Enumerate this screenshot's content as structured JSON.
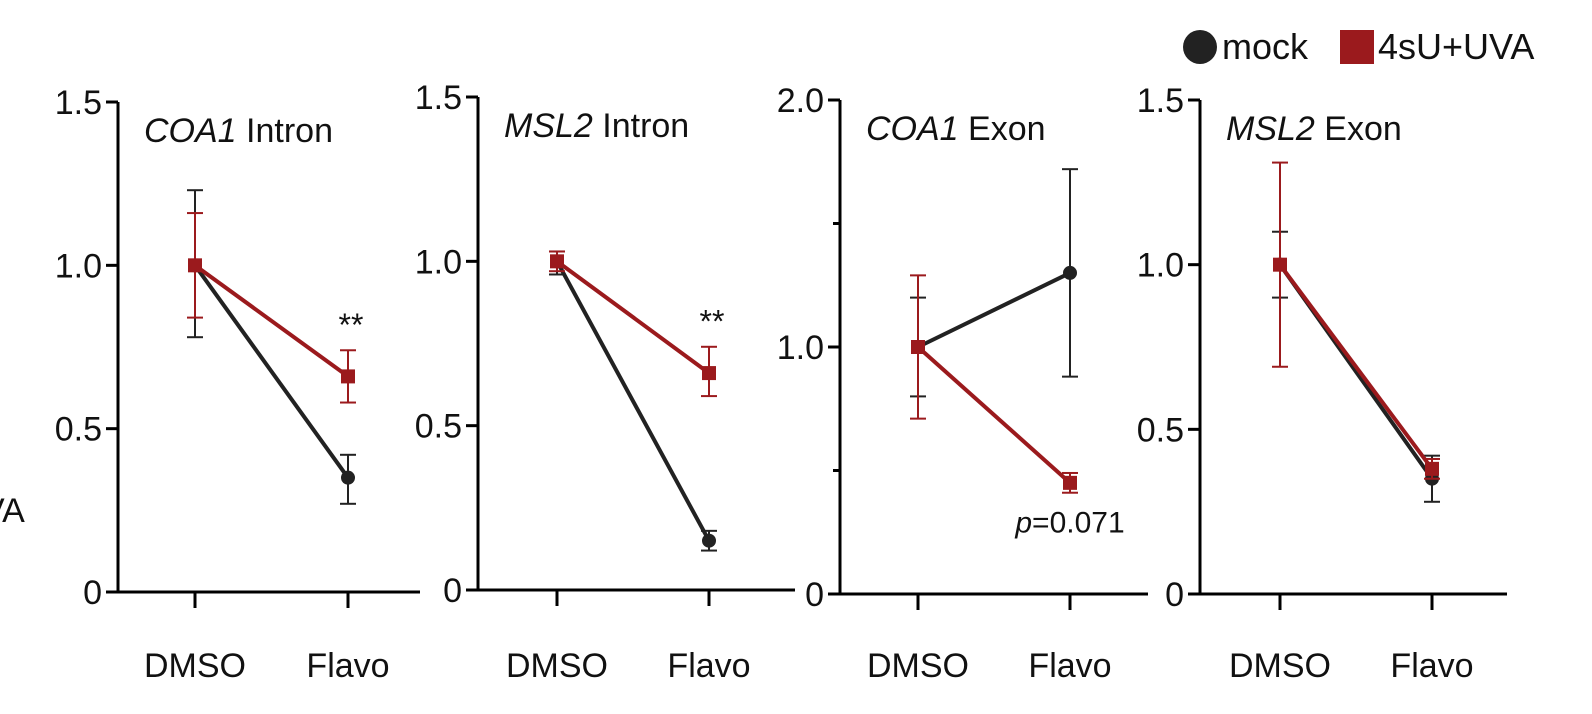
{
  "legend": {
    "items": [
      {
        "name": "mock",
        "marker": "circle",
        "color": "#222222"
      },
      {
        "name": "4sU+UVA",
        "marker": "square",
        "color": "#9b1a1d"
      }
    ],
    "placement": "top-right"
  },
  "clipped_label": "VA",
  "colors": {
    "mock": "#222222",
    "treated": "#9b1a1d",
    "axis": "#000000"
  },
  "chart_data": [
    {
      "type": "line",
      "title_italic": "COA1",
      "title_rest": " Intron",
      "categories": [
        "DMSO",
        "Flavo"
      ],
      "ylim": [
        0,
        1.5
      ],
      "yticks": [
        0,
        0.5,
        1.0,
        1.5
      ],
      "ytick_labels": [
        "0",
        "0.5",
        "1.0",
        "1.5"
      ],
      "series": [
        {
          "name": "mock",
          "values": [
            1.0,
            0.35
          ],
          "err_low": [
            0.78,
            0.27
          ],
          "err_high": [
            1.23,
            0.42
          ]
        },
        {
          "name": "4sU+UVA",
          "values": [
            1.0,
            0.66
          ],
          "err_low": [
            0.84,
            0.58
          ],
          "err_high": [
            1.16,
            0.74
          ]
        }
      ],
      "annotation": {
        "text": "**",
        "category": 1,
        "y": 0.82
      }
    },
    {
      "type": "line",
      "title_italic": "MSL2",
      "title_rest": " Intron",
      "categories": [
        "DMSO",
        "Flavo"
      ],
      "ylim": [
        0,
        1.5
      ],
      "yticks": [
        0,
        0.5,
        1.0,
        1.5
      ],
      "ytick_labels": [
        "0",
        "0.5",
        "1.0",
        "1.5"
      ],
      "series": [
        {
          "name": "mock",
          "values": [
            1.0,
            0.15
          ],
          "err_low": [
            0.96,
            0.12
          ],
          "err_high": [
            1.03,
            0.18
          ]
        },
        {
          "name": "4sU+UVA",
          "values": [
            1.0,
            0.66
          ],
          "err_low": [
            0.97,
            0.59
          ],
          "err_high": [
            1.03,
            0.74
          ]
        }
      ],
      "annotation": {
        "text": "**",
        "category": 1,
        "y": 0.82
      }
    },
    {
      "type": "line",
      "title_italic": "COA1",
      "title_rest": " Exon",
      "categories": [
        "DMSO",
        "Flavo"
      ],
      "ylim": [
        0,
        2.0
      ],
      "yticks": [
        0,
        1.0,
        2.0
      ],
      "ytick_labels": [
        "0",
        "1.0",
        "2.0"
      ],
      "minor_yticks": [
        0.5,
        1.5
      ],
      "series": [
        {
          "name": "mock",
          "values": [
            1.0,
            1.3
          ],
          "err_low": [
            0.8,
            0.88
          ],
          "err_high": [
            1.2,
            1.72
          ]
        },
        {
          "name": "4sU+UVA",
          "values": [
            1.0,
            0.45
          ],
          "err_low": [
            0.71,
            0.41
          ],
          "err_high": [
            1.29,
            0.49
          ]
        }
      ],
      "annotation": {
        "text_italic": "p",
        "text_rest": "=0.071",
        "category": 1,
        "y": 0.25
      }
    },
    {
      "type": "line",
      "title_italic": "MSL2",
      "title_rest": " Exon",
      "categories": [
        "DMSO",
        "Flavo"
      ],
      "ylim": [
        0,
        1.5
      ],
      "yticks": [
        0,
        0.5,
        1.0,
        1.5
      ],
      "ytick_labels": [
        "0",
        "0.5",
        "1.0",
        "1.5"
      ],
      "series": [
        {
          "name": "mock",
          "values": [
            1.0,
            0.35
          ],
          "err_low": [
            0.9,
            0.28
          ],
          "err_high": [
            1.1,
            0.42
          ]
        },
        {
          "name": "4sU+UVA",
          "values": [
            1.0,
            0.38
          ],
          "err_low": [
            0.69,
            0.35
          ],
          "err_high": [
            1.31,
            0.41
          ]
        }
      ]
    }
  ]
}
